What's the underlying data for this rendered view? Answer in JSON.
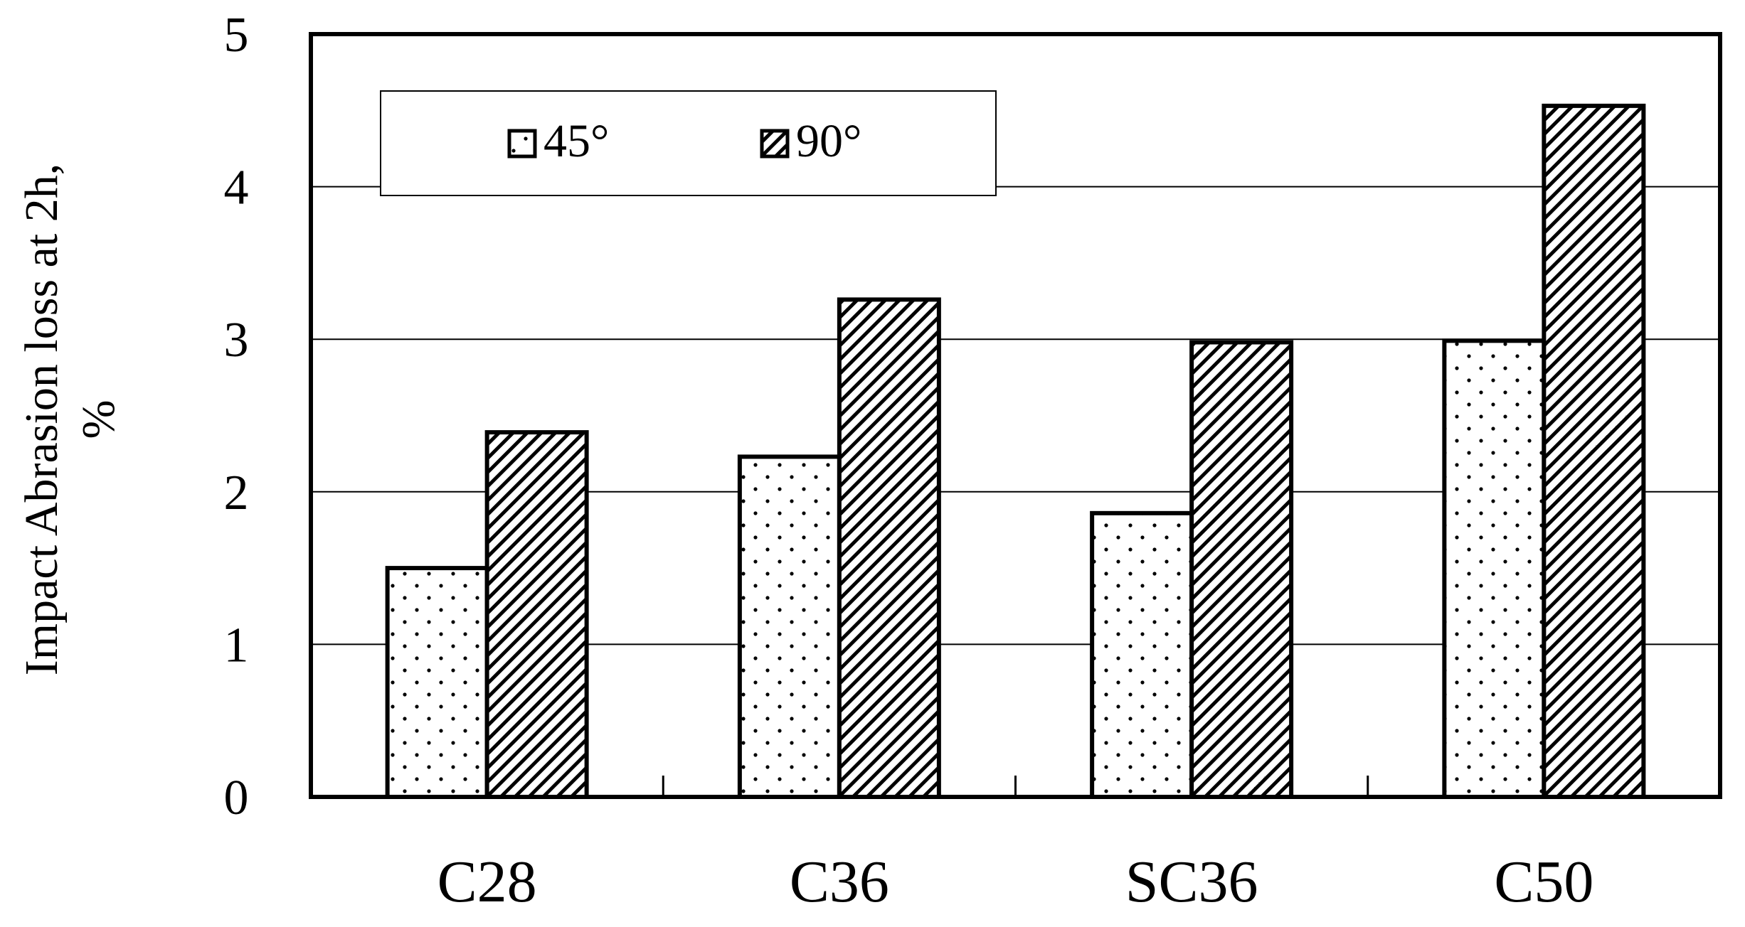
{
  "chart_data": {
    "type": "bar",
    "categories": [
      "C28",
      "C36",
      "SC36",
      "C50"
    ],
    "series": [
      {
        "name": "45°",
        "values": [
          1.5,
          2.23,
          1.86,
          2.99
        ]
      },
      {
        "name": "90°",
        "values": [
          2.39,
          3.26,
          2.98,
          4.53
        ]
      }
    ],
    "ylabel_line1": "Impact Abrasion loss at 2h,",
    "ylabel_line2": "%",
    "ylim": [
      0,
      5
    ],
    "yticks": [
      "0",
      "1",
      "2",
      "3",
      "4",
      "5"
    ],
    "grid": true,
    "legend": "top-left"
  }
}
